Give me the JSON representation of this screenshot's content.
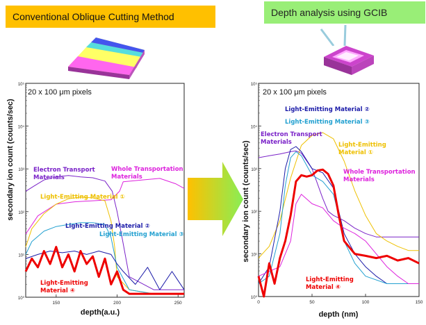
{
  "header": {
    "left_title": "Conventional Oblique Cutting Method",
    "right_title": "Depth analysis using GCIB"
  },
  "colors": {
    "electron_transport": "#7a22c8",
    "whole_transport": "#dd22dd",
    "light_1": "#eec000",
    "light_2": "#1a1aa8",
    "light_3": "#22a0d0",
    "light_4": "#ee0000"
  },
  "chart_data": [
    {
      "type": "line",
      "pixel_note": "20 x 100 μm pixels",
      "xlabel": "depth(a.u.)",
      "ylabel": "secondary ion count (counts/sec)",
      "xlim": [
        125,
        255
      ],
      "ylim": [
        1,
        100000
      ],
      "yscale": "log",
      "xticks": [
        150,
        200,
        250
      ],
      "yticks": [
        {
          "value": 1,
          "label": "10⁰"
        },
        {
          "value": 10,
          "label": "10¹"
        },
        {
          "value": 100,
          "label": "10²"
        },
        {
          "value": 1000,
          "label": "10³"
        },
        {
          "value": 10000,
          "label": "10⁴"
        },
        {
          "value": 100000,
          "label": "10⁵"
        }
      ],
      "annotations": [
        {
          "lines": [
            "Electron Transport",
            "Materials"
          ],
          "series": "electron_transport"
        },
        {
          "lines": [
            "Whole Transportation",
            "Materials"
          ],
          "series": "whole_transport"
        },
        {
          "lines": [
            "Light-Emitting Material ①"
          ],
          "series": "light_1"
        },
        {
          "lines": [
            "Light-Emitting Material ②"
          ],
          "series": "light_2"
        },
        {
          "lines": [
            "Light-Emitting Material ③"
          ],
          "series": "light_3"
        },
        {
          "lines": [
            "Light-Emitting",
            "Material ④"
          ],
          "series": "light_4"
        }
      ],
      "series": [
        {
          "key": "whole_transport",
          "x": [
            125,
            135,
            150,
            165,
            180,
            195,
            202,
            205,
            220,
            235,
            248,
            255
          ],
          "y": [
            30,
            80,
            150,
            170,
            180,
            190,
            300,
            500,
            550,
            600,
            450,
            350
          ]
        },
        {
          "key": "electron_transport",
          "x": [
            125,
            132,
            140,
            150,
            160,
            170,
            180,
            190,
            196,
            200,
            204,
            210,
            230,
            255
          ],
          "y": [
            300,
            400,
            550,
            650,
            700,
            650,
            620,
            520,
            300,
            100,
            25,
            3,
            1.5,
            1.5
          ]
        },
        {
          "key": "light_1",
          "x": [
            125,
            130,
            140,
            150,
            160,
            170,
            180,
            190,
            195,
            198,
            200,
            210,
            230,
            255
          ],
          "y": [
            15,
            40,
            90,
            150,
            200,
            220,
            210,
            180,
            60,
            15,
            3,
            1.5,
            1.2,
            1.2
          ]
        },
        {
          "key": "light_3",
          "x": [
            125,
            130,
            140,
            150,
            160,
            170,
            180,
            190,
            195,
            200,
            210,
            230,
            255
          ],
          "y": [
            10,
            20,
            35,
            45,
            50,
            55,
            55,
            50,
            25,
            5,
            1.5,
            1.2,
            1.2
          ]
        },
        {
          "key": "light_2",
          "x": [
            125,
            135,
            145,
            155,
            165,
            175,
            185,
            195,
            200,
            205,
            215,
            225,
            235,
            245,
            255
          ],
          "y": [
            8,
            10,
            12,
            11,
            12,
            10,
            12,
            10,
            6,
            4,
            2,
            5,
            1.5,
            4,
            1.5
          ]
        },
        {
          "key": "light_4",
          "x": [
            125,
            130,
            135,
            140,
            145,
            150,
            155,
            160,
            165,
            170,
            175,
            180,
            185,
            190,
            195,
            200,
            205,
            210,
            230,
            255
          ],
          "y": [
            4,
            8,
            5,
            12,
            6,
            15,
            5,
            10,
            4,
            12,
            6,
            9,
            3,
            8,
            2,
            4,
            1.5,
            1.2,
            1.2,
            1.2
          ]
        }
      ]
    },
    {
      "type": "line",
      "pixel_note": "20 x 100 μm pixels",
      "xlabel": "depth (nm)",
      "ylabel": "secondary ion count (counts/sec)",
      "xlim": [
        0,
        150
      ],
      "ylim": [
        1,
        100000
      ],
      "yscale": "log",
      "xticks": [
        0,
        50,
        100,
        150
      ],
      "yticks": [
        {
          "value": 1,
          "label": "10⁰"
        },
        {
          "value": 10,
          "label": "10¹"
        },
        {
          "value": 100,
          "label": "10²"
        },
        {
          "value": 1000,
          "label": "10³"
        },
        {
          "value": 10000,
          "label": "10⁴"
        },
        {
          "value": 100000,
          "label": "10⁵"
        }
      ],
      "annotations": [
        {
          "lines": [
            "Light-Emitting Material ②"
          ],
          "series": "light_2"
        },
        {
          "lines": [
            "Light-Emitting Material ③"
          ],
          "series": "light_3"
        },
        {
          "lines": [
            "Electron Transport",
            "Materials"
          ],
          "series": "electron_transport"
        },
        {
          "lines": [
            "Light-Emitting",
            "Material ①"
          ],
          "series": "light_1"
        },
        {
          "lines": [
            "Whole Transportation",
            "Materials"
          ],
          "series": "whole_transport"
        },
        {
          "lines": [
            "Light-Emitting",
            "Material ④"
          ],
          "series": "light_4"
        }
      ],
      "series": [
        {
          "key": "electron_transport",
          "x": [
            0,
            10,
            20,
            30,
            35,
            40,
            50,
            60,
            65,
            70,
            80,
            90,
            100,
            110,
            120,
            130,
            140,
            150
          ],
          "y": [
            1800,
            2000,
            2200,
            2500,
            2600,
            2300,
            1000,
            200,
            100,
            80,
            60,
            40,
            30,
            25,
            25,
            25,
            25,
            25
          ]
        },
        {
          "key": "light_1",
          "x": [
            0,
            10,
            20,
            30,
            40,
            50,
            60,
            70,
            80,
            90,
            100,
            110,
            120,
            130,
            140,
            150
          ],
          "y": [
            8,
            15,
            60,
            600,
            3500,
            6000,
            7000,
            5000,
            1500,
            300,
            80,
            30,
            20,
            15,
            12,
            12
          ]
        },
        {
          "key": "light_2",
          "x": [
            0,
            10,
            20,
            25,
            30,
            35,
            40,
            50,
            60,
            70,
            75,
            80,
            90,
            100,
            110,
            120,
            150
          ],
          "y": [
            2,
            5,
            100,
            1000,
            2800,
            3300,
            2500,
            1000,
            800,
            350,
            100,
            30,
            10,
            5,
            3,
            2,
            2
          ]
        },
        {
          "key": "light_3",
          "x": [
            0,
            10,
            20,
            25,
            30,
            35,
            40,
            50,
            60,
            70,
            75,
            80,
            90,
            100,
            120,
            150
          ],
          "y": [
            2,
            3,
            30,
            400,
            1800,
            2500,
            2000,
            700,
            500,
            250,
            80,
            20,
            6,
            3,
            2,
            2
          ]
        },
        {
          "key": "whole_transport",
          "x": [
            0,
            20,
            30,
            35,
            40,
            50,
            60,
            70,
            80,
            90,
            100,
            110,
            120,
            130,
            140,
            150
          ],
          "y": [
            3,
            5,
            20,
            150,
            250,
            150,
            120,
            60,
            40,
            30,
            20,
            10,
            5,
            3,
            2,
            2
          ]
        },
        {
          "key": "light_4",
          "x": [
            0,
            5,
            10,
            15,
            20,
            25,
            30,
            35,
            40,
            45,
            50,
            55,
            60,
            65,
            70,
            75,
            80,
            90,
            100,
            110,
            120,
            130,
            140,
            150
          ],
          "y": [
            3,
            1,
            6,
            2,
            8,
            20,
            80,
            500,
            700,
            650,
            700,
            900,
            950,
            750,
            400,
            80,
            20,
            10,
            9,
            8,
            9,
            7,
            8,
            6
          ]
        }
      ]
    }
  ]
}
